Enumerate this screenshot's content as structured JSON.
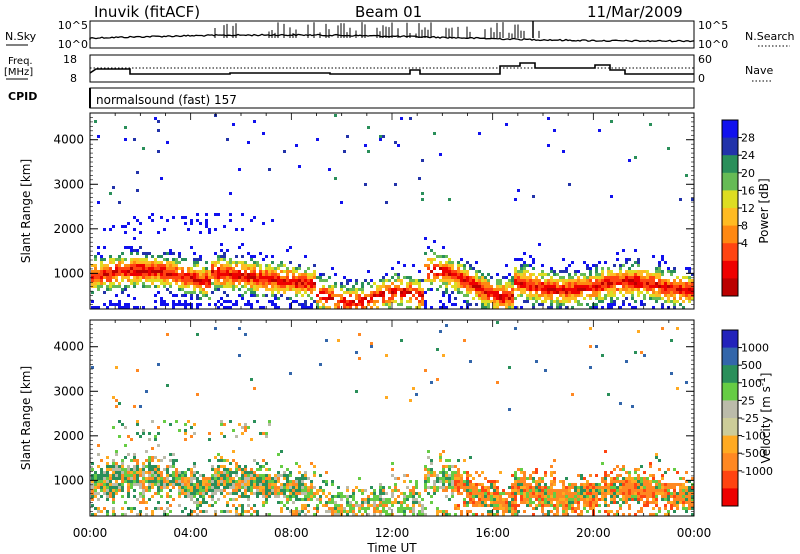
{
  "header": {
    "station": "Inuvik (fitACF)",
    "beam": "Beam 01",
    "date": "11/Mar/2009"
  },
  "side_labels": {
    "nsky": "N.Sky",
    "freq": "Freq.",
    "freq_unit": "[MHz]",
    "cpid": "CPID",
    "nsearch": "N.Search",
    "nave": "Nave",
    "cpid_text": "normalsound (fast) 157"
  },
  "noise_panel": {
    "left_ticks": [
      "10^5",
      "10^0"
    ],
    "right_ticks": [
      "10^5",
      "10^0"
    ]
  },
  "freq_panel": {
    "left_ticks": [
      "18",
      "8"
    ],
    "right_ticks": [
      "60",
      "0"
    ]
  },
  "colors": {
    "power": [
      "#1111ee",
      "#2233aa",
      "#2a8f5a",
      "#66bb55",
      "#dddd22",
      "#ffbb22",
      "#ff8811",
      "#ff4411",
      "#ee0000",
      "#bb0000"
    ],
    "velocity": [
      "#2222bb",
      "#3366aa",
      "#2a8f5a",
      "#66cc44",
      "#bbbbaa",
      "#cccc99",
      "#ffaa22",
      "#ff8822",
      "#ff4411",
      "#ee0000"
    ]
  },
  "chart_data": [
    {
      "type": "heatmap",
      "panel": "power",
      "ylabel": "Slant Range [km]",
      "y_ticks": [
        1000,
        2000,
        3000,
        4000
      ],
      "ylim": [
        200,
        4600
      ],
      "x_ticks": [
        "00:00",
        "04:00",
        "08:00",
        "12:00",
        "16:00",
        "20:00",
        "00:00"
      ],
      "colorbar_label": "Power [dB]",
      "colorbar_ticks": [
        "28",
        "24",
        "20",
        "16",
        "12",
        "8",
        "4"
      ]
    },
    {
      "type": "heatmap",
      "panel": "velocity",
      "ylabel": "Slant Range [km]",
      "y_ticks": [
        1000,
        2000,
        3000,
        4000
      ],
      "ylim": [
        200,
        4600
      ],
      "x_ticks": [
        "00:00",
        "04:00",
        "08:00",
        "12:00",
        "16:00",
        "20:00",
        "00:00"
      ],
      "xlabel": "Time UT",
      "colorbar_label": "Velocity [m s^-1]",
      "colorbar_ticks": [
        "1000",
        "500",
        "100",
        "25",
        "-25",
        "-100",
        "-500",
        "-1000"
      ]
    }
  ]
}
